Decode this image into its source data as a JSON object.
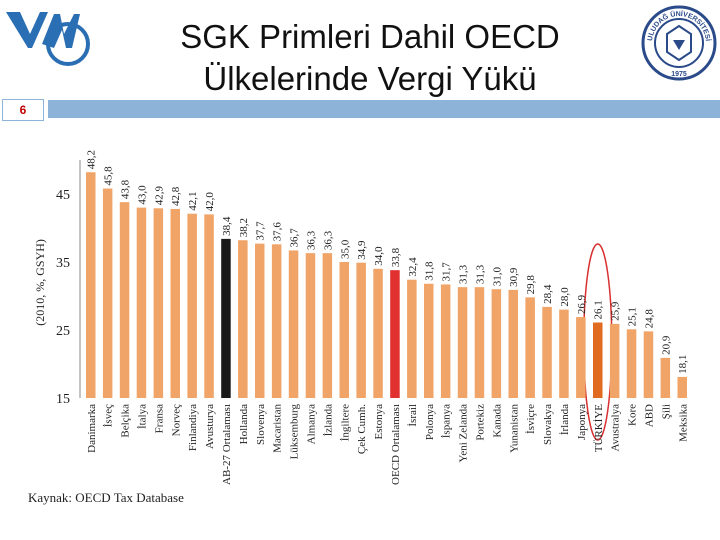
{
  "slide": {
    "title_line1": "SGK Primleri Dahil OECD",
    "title_line2": "Ülkelerinde Vergi Yükü",
    "slide_number": "6",
    "source": "Kaynak: OECD Tax Database",
    "logo_text": "YM",
    "seal_text": "ULUDAĞ ÜNİVERSİTESİ",
    "seal_year": "1975"
  },
  "colors": {
    "bar_default": "#f0a467",
    "bar_eu": "#1a1a1a",
    "bar_oecd": "#e03030",
    "bar_turkey": "#e06a1f",
    "highlight_ellipse": "#d83030",
    "slide_bar": "#8db3d8",
    "logo_blue": "#2a6fb3"
  },
  "chart_data": {
    "type": "bar",
    "ylabel": "(2010, %, GSYH)",
    "ylim": [
      15,
      50
    ],
    "yticks": [
      15,
      25,
      35,
      45
    ],
    "categories": [
      "Danimarka",
      "İsveç",
      "Belçika",
      "İtalya",
      "Fransa",
      "Norveç",
      "Finlandiya",
      "Avusturya",
      "AB-27 Ortalaması",
      "Hollanda",
      "Slovenya",
      "Macaristan",
      "Lüksemburg",
      "Almanya",
      "İzlanda",
      "İngiltere",
      "Çek Cumh.",
      "Estonya",
      "OECD Ortalaması",
      "İsrail",
      "Polonya",
      "İspanya",
      "Yeni Zelanda",
      "Portekiz",
      "Kanada",
      "Yunanistan",
      "İsviçre",
      "Slovakya",
      "İrlanda",
      "Japonya",
      "TÜRKİYE",
      "Avustralya",
      "Kore",
      "ABD",
      "Şili",
      "Meksika"
    ],
    "values": [
      48.2,
      45.8,
      43.8,
      43.0,
      42.9,
      42.8,
      42.1,
      42.0,
      38.4,
      38.2,
      37.7,
      37.6,
      36.7,
      36.3,
      36.3,
      35.0,
      34.9,
      34.0,
      33.8,
      32.4,
      31.8,
      31.7,
      31.3,
      31.3,
      31.0,
      30.9,
      29.8,
      28.4,
      28.0,
      26.9,
      26.1,
      25.9,
      25.1,
      24.8,
      20.9,
      18.1
    ],
    "value_labels": [
      "48,2",
      "45,8",
      "43,8",
      "43,0",
      "42,9",
      "42,8",
      "42,1",
      "42,0",
      "38,4",
      "38,2",
      "37,7",
      "37,6",
      "36,7",
      "36,3",
      "36,3",
      "35,0",
      "34,9",
      "34,0",
      "33,8",
      "32,4",
      "31,8",
      "31,7",
      "31,3",
      "31,3",
      "31,0",
      "30,9",
      "29,8",
      "28,4",
      "28,0",
      "26,9",
      "26,1",
      "25,9",
      "25,1",
      "24,8",
      "20,9",
      "18,1"
    ],
    "highlighted_categories": [
      "AB-27 Ortalaması",
      "OECD Ortalaması",
      "TÜRKİYE"
    ],
    "grid": false,
    "legend": "none"
  }
}
